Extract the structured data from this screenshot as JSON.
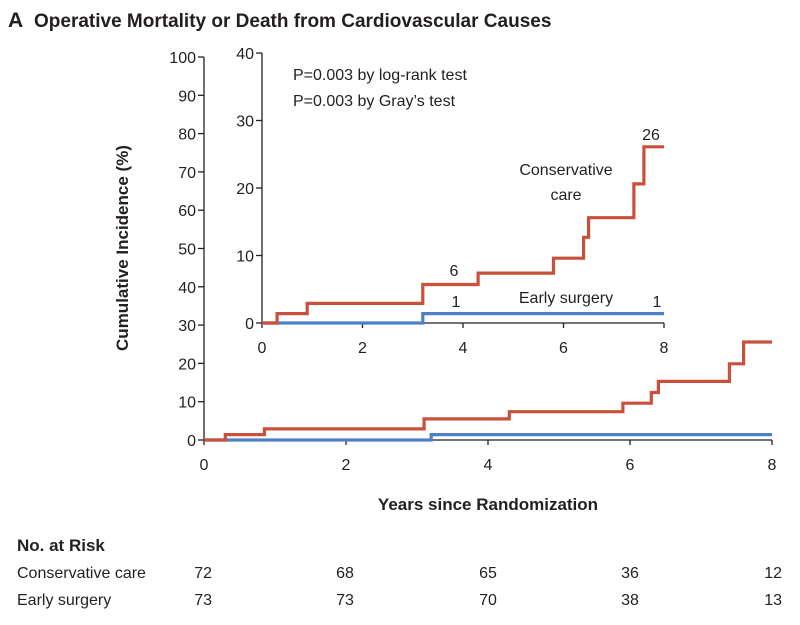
{
  "panel": {
    "letter": "A",
    "title": "Operative Mortality or Death from Cardiovascular Causes"
  },
  "inset": {
    "annotations": [
      "P=0.003 by log-rank test",
      "P=0.003 by Gray’s test"
    ],
    "series_labels": {
      "conservative": [
        "Conservative",
        "care"
      ],
      "early": "Early surgery"
    },
    "end_labels": {
      "conservative_mid": "6",
      "conservative_end": "26",
      "early_mid": "1",
      "early_end": "1"
    }
  },
  "risk_table": {
    "title": "No. at Risk",
    "times": [
      0,
      2,
      4,
      6,
      8
    ],
    "rows": [
      {
        "label": "Conservative care",
        "values": [
          "72",
          "68",
          "65",
          "36",
          "12"
        ]
      },
      {
        "label": "Early surgery",
        "values": [
          "73",
          "73",
          "70",
          "38",
          "13"
        ]
      }
    ]
  },
  "colors": {
    "conservative": "#c9503a",
    "early": "#4f80c5",
    "axis": "#231f20"
  },
  "chart_data": [
    {
      "type": "line",
      "step": true,
      "title": "",
      "xlabel": "Years since Randomization",
      "ylabel": "Cumulative Incidence (%)",
      "xlim": [
        0,
        8
      ],
      "ylim": [
        0,
        100
      ],
      "xticks": [
        0,
        2,
        4,
        6,
        8
      ],
      "yticks": [
        0,
        10,
        20,
        30,
        40,
        50,
        60,
        70,
        80,
        90,
        100
      ],
      "series": [
        {
          "name": "Conservative care",
          "x": [
            0,
            0.3,
            0.85,
            3.1,
            4.3,
            5.9,
            6.3,
            6.4,
            7.4,
            7.6,
            8.0
          ],
          "y": [
            0,
            1.4,
            2.9,
            5.5,
            7.4,
            9.6,
            12.4,
            15.3,
            19.9,
            25.6,
            25.6
          ]
        },
        {
          "name": "Early surgery",
          "x": [
            0,
            3.2,
            8.0
          ],
          "y": [
            0,
            1.4,
            1.4
          ]
        }
      ]
    },
    {
      "type": "line",
      "step": true,
      "title": "",
      "xlim": [
        0,
        8
      ],
      "ylim": [
        0,
        40
      ],
      "xticks": [
        0,
        2,
        4,
        6,
        8
      ],
      "yticks": [
        0,
        10,
        20,
        30,
        40
      ],
      "series": [
        {
          "name": "Conservative care",
          "x": [
            0,
            0.3,
            0.9,
            3.2,
            4.3,
            5.8,
            6.4,
            6.5,
            7.4,
            7.6,
            8.0
          ],
          "y": [
            0,
            1.4,
            2.9,
            5.7,
            7.4,
            9.6,
            12.7,
            15.6,
            20.6,
            26.1,
            26.1
          ]
        },
        {
          "name": "Early surgery",
          "x": [
            0,
            3.2,
            8.0
          ],
          "y": [
            0,
            1.4,
            1.4
          ]
        }
      ]
    }
  ]
}
